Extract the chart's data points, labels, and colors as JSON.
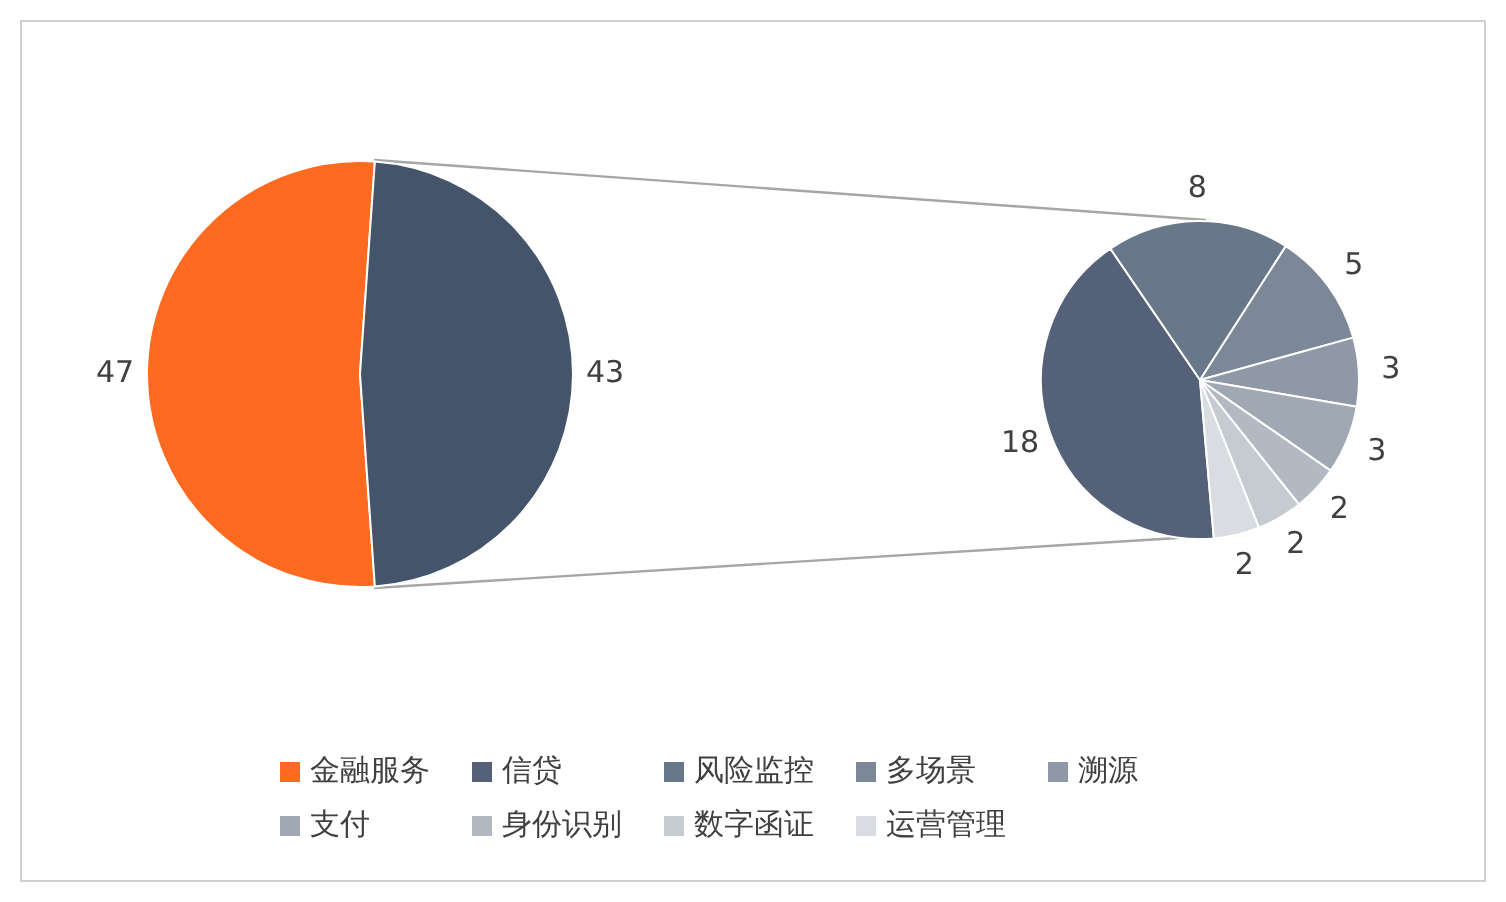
{
  "chart_data": [
    {
      "type": "pie",
      "categories": [
        "金融服务",
        null
      ],
      "values": [
        47,
        43
      ],
      "colors": [
        "#ff6a21",
        "#44546a"
      ],
      "data_labels": true,
      "legend": "bottom"
    },
    {
      "type": "pie",
      "categories": [
        "信贷",
        "风险监控",
        "多场景",
        "溯源",
        "支付",
        "身份识别",
        "数字函证",
        "运营管理"
      ],
      "values": [
        18,
        8,
        5,
        3,
        3,
        2,
        2,
        2
      ],
      "colors": [
        "#546178",
        "#68778a",
        "#7c8898",
        "#8e98a6",
        "#a0a8b3",
        "#b3b9c2",
        "#c6cbd1",
        "#d9dce1"
      ],
      "data_labels": true,
      "legend": "bottom"
    }
  ]
}
